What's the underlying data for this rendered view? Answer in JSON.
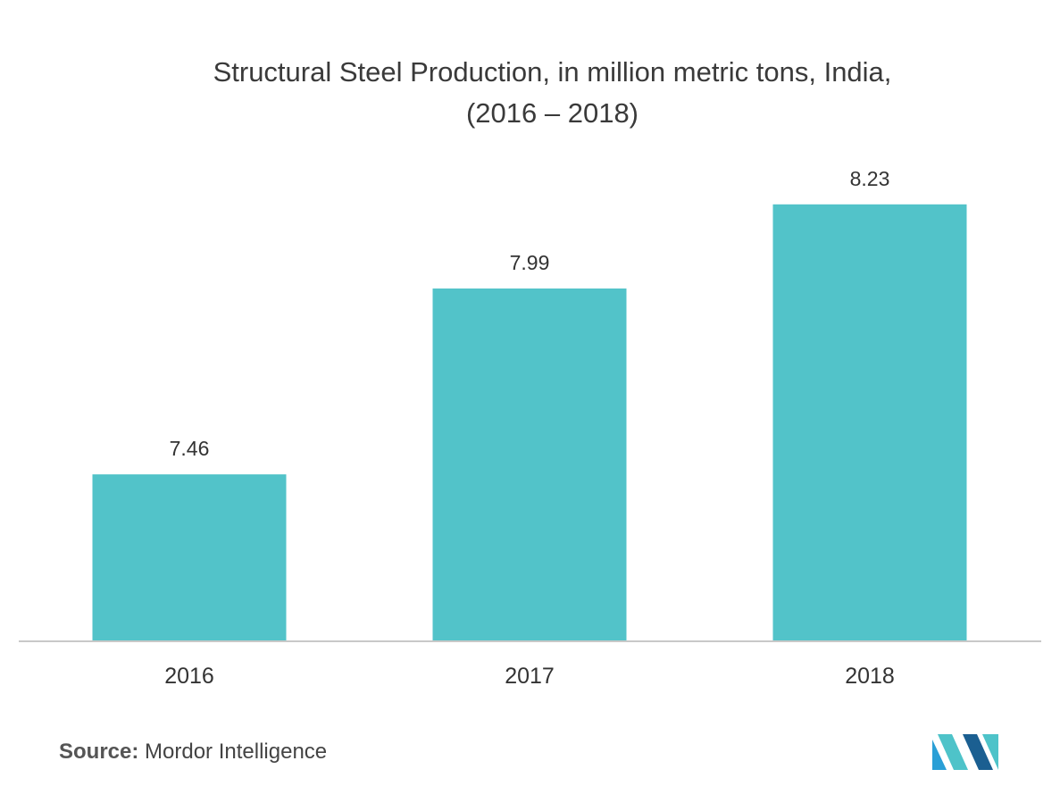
{
  "chart_data": {
    "type": "bar",
    "title_line1": "Structural Steel Production, in million metric tons, India,",
    "title_line2": "(2016 – 2018)",
    "categories": [
      "2016",
      "2017",
      "2018"
    ],
    "values": [
      7.46,
      7.99,
      8.23
    ],
    "value_labels": [
      "7.46",
      "7.99",
      "8.23"
    ],
    "xlabel": "",
    "ylabel": "",
    "bar_color": "#52c3c9",
    "axis_color": "#c8c8c8",
    "grid": false,
    "legend": "none"
  },
  "source": {
    "label": "Source:",
    "text": "Mordor Intelligence"
  },
  "logo": {
    "icon": "mordor-intelligence-logo-icon",
    "colors": [
      "#2a9fd6",
      "#4ec3c9",
      "#1b5f91"
    ]
  }
}
